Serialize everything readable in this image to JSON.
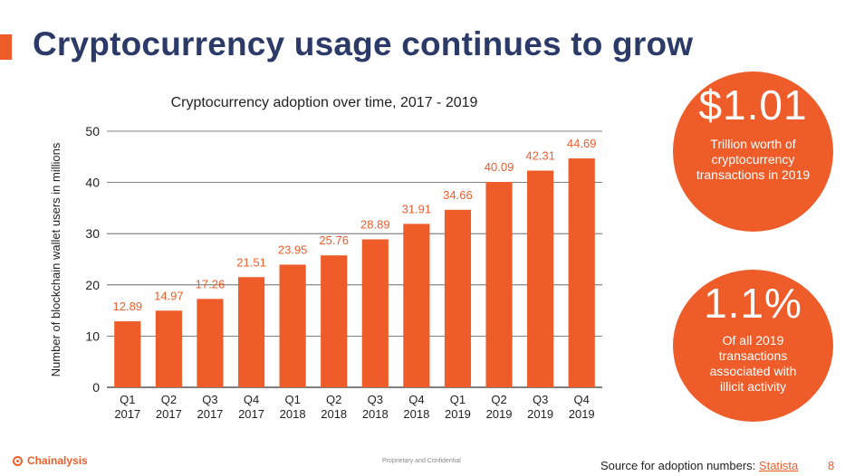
{
  "slide": {
    "title": "Cryptocurrency usage continues to grow",
    "accent_color": "#EE5C2A",
    "title_color": "#2B3A67"
  },
  "stats": [
    {
      "value": "$1.01",
      "caption": "Trillion worth of cryptocurrency transactions in 2019"
    },
    {
      "value": "1.1%",
      "caption": "Of all 2019 transactions associated with illicit activity"
    }
  ],
  "footer": {
    "brand": "Chainalysis",
    "confidential": "Proprietary and Confidential",
    "source_prefix": "Source for adoption numbers:",
    "source_link": "Statista",
    "page_number": "8"
  },
  "chart_data": {
    "type": "bar",
    "title": "Cryptocurrency adoption over time, 2017 - 2019",
    "xlabel": "",
    "ylabel": "Number of blockchain wallet users in millions",
    "ylim": [
      0,
      50
    ],
    "yticks": [
      0,
      10,
      20,
      30,
      40,
      50
    ],
    "grid": true,
    "bar_color": "#EE5C2A",
    "label_color": "#EE5C2A",
    "categories": [
      [
        "Q1",
        "2017"
      ],
      [
        "Q2",
        "2017"
      ],
      [
        "Q3",
        "2017"
      ],
      [
        "Q4",
        "2017"
      ],
      [
        "Q1",
        "2018"
      ],
      [
        "Q2",
        "2018"
      ],
      [
        "Q3",
        "2018"
      ],
      [
        "Q4",
        "2018"
      ],
      [
        "Q1",
        "2019"
      ],
      [
        "Q2",
        "2019"
      ],
      [
        "Q3",
        "2019"
      ],
      [
        "Q4",
        "2019"
      ]
    ],
    "values": [
      12.89,
      14.97,
      17.26,
      21.51,
      23.95,
      25.76,
      28.89,
      31.91,
      34.66,
      40.09,
      42.31,
      44.69
    ],
    "value_labels": [
      "12.89",
      "14.97",
      "17.26",
      "21.51",
      "23.95",
      "25.76",
      "28.89",
      "31.91",
      "34.66",
      "40.09",
      "42.31",
      "44.69"
    ]
  }
}
